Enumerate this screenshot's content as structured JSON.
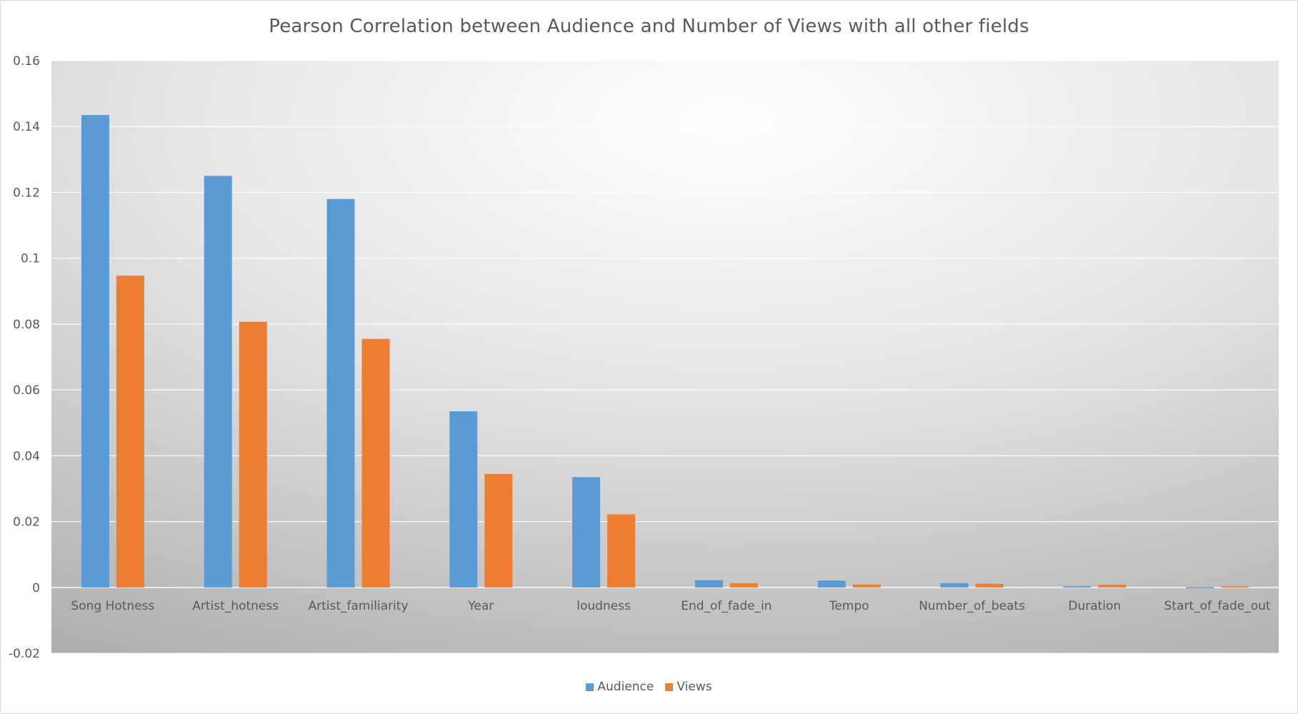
{
  "chart_data": {
    "type": "bar",
    "title": "Pearson Correlation between Audience and Number of Views with all other fields",
    "categories": [
      "Song Hotness",
      "Artist_hotness",
      "Artist_familiarity",
      "Year",
      "loudness",
      "End_of_fade_in",
      "Tempo",
      "Number_of_beats",
      "Duration",
      "Start_of_fade_out"
    ],
    "series": [
      {
        "name": "Audience",
        "color": "#5b9bd5",
        "values": [
          0.1435,
          0.125,
          0.118,
          0.0535,
          0.0335,
          0.0022,
          0.0021,
          0.0013,
          0.0004,
          0.0001
        ]
      },
      {
        "name": "Views",
        "color": "#ed7d31",
        "values": [
          0.0947,
          0.0807,
          0.0755,
          0.0345,
          0.0222,
          0.0013,
          0.0009,
          0.0011,
          0.0008,
          0.0004
        ]
      }
    ],
    "yticks": [
      "0.16",
      "0.14",
      "0.12",
      "0.1",
      "0.08",
      "0.06",
      "0.04",
      "0.02",
      "0",
      "-0.02"
    ],
    "ylim": [
      -0.02,
      0.16
    ],
    "xlabel": "",
    "ylabel": "",
    "grid": true,
    "legend_position": "bottom"
  }
}
